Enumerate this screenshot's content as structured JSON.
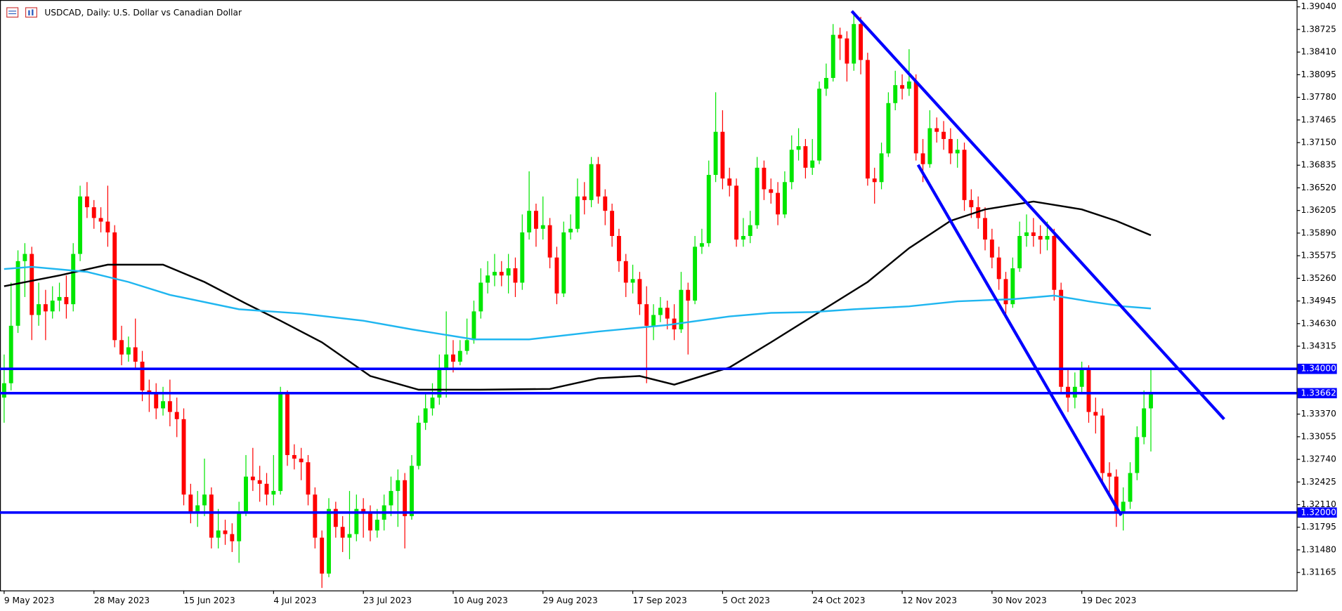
{
  "chart_data": {
    "type": "candlestick",
    "title": "USDCAD, Daily:  U.S. Dollar vs Canadian Dollar",
    "up_color": "#00e600",
    "down_color": "#ff0000",
    "xlim": [
      -0.6,
      187.1
    ],
    "ylim": [
      1.30915,
      1.39135
    ],
    "xticks": [
      {
        "value": 0,
        "label": "9 May 2023"
      },
      {
        "value": 13,
        "label": "28 May 2023"
      },
      {
        "value": 26,
        "label": "15 Jun 2023"
      },
      {
        "value": 39,
        "label": "4 Jul 2023"
      },
      {
        "value": 52,
        "label": "23 Jul 2023"
      },
      {
        "value": 65,
        "label": "10 Aug 2023"
      },
      {
        "value": 78,
        "label": "29 Aug 2023"
      },
      {
        "value": 91,
        "label": "17 Sep 2023"
      },
      {
        "value": 104,
        "label": "5 Oct 2023"
      },
      {
        "value": 117,
        "label": "24 Oct 2023"
      },
      {
        "value": 130,
        "label": "12 Nov 2023"
      },
      {
        "value": 143,
        "label": "30 Nov 2023"
      },
      {
        "value": 156,
        "label": "19 Dec 2023"
      }
    ],
    "yticks": [
      {
        "value": 1.3904,
        "label": "1.39040"
      },
      {
        "value": 1.38725,
        "label": "1.38725"
      },
      {
        "value": 1.3841,
        "label": "1.38410"
      },
      {
        "value": 1.38095,
        "label": "1.38095"
      },
      {
        "value": 1.3778,
        "label": "1.37780"
      },
      {
        "value": 1.37465,
        "label": "1.37465"
      },
      {
        "value": 1.3715,
        "label": "1.37150"
      },
      {
        "value": 1.36835,
        "label": "1.36835"
      },
      {
        "value": 1.3652,
        "label": "1.36520"
      },
      {
        "value": 1.36205,
        "label": "1.36205"
      },
      {
        "value": 1.3589,
        "label": "1.35890"
      },
      {
        "value": 1.35575,
        "label": "1.35575"
      },
      {
        "value": 1.3526,
        "label": "1.35260"
      },
      {
        "value": 1.34945,
        "label": "1.34945"
      },
      {
        "value": 1.3463,
        "label": "1.34630"
      },
      {
        "value": 1.34315,
        "label": "1.34315"
      },
      {
        "value": 1.3337,
        "label": "1.33370"
      },
      {
        "value": 1.33055,
        "label": "1.33055"
      },
      {
        "value": 1.3274,
        "label": "1.32740"
      },
      {
        "value": 1.32425,
        "label": "1.32425"
      },
      {
        "value": 1.3211,
        "label": "1.32110"
      },
      {
        "value": 1.31795,
        "label": "1.31795"
      },
      {
        "value": 1.3148,
        "label": "1.31480"
      },
      {
        "value": 1.31165,
        "label": "1.31165"
      }
    ],
    "candles": [
      [
        1.336,
        1.342,
        1.3325,
        1.338
      ],
      [
        1.338,
        1.352,
        1.337,
        1.346
      ],
      [
        1.346,
        1.3565,
        1.345,
        1.355
      ],
      [
        1.355,
        1.3575,
        1.35,
        1.356
      ],
      [
        1.356,
        1.357,
        1.344,
        1.3475
      ],
      [
        1.3475,
        1.352,
        1.346,
        1.349
      ],
      [
        1.349,
        1.351,
        1.344,
        1.348
      ],
      [
        1.348,
        1.3515,
        1.347,
        1.3495
      ],
      [
        1.3495,
        1.352,
        1.348,
        1.35
      ],
      [
        1.35,
        1.353,
        1.347,
        1.349
      ],
      [
        1.349,
        1.3575,
        1.348,
        1.356
      ],
      [
        1.356,
        1.3655,
        1.355,
        1.364
      ],
      [
        1.364,
        1.366,
        1.361,
        1.3625
      ],
      [
        1.3625,
        1.3635,
        1.3595,
        1.361
      ],
      [
        1.361,
        1.3625,
        1.359,
        1.3605
      ],
      [
        1.3605,
        1.3655,
        1.357,
        1.359
      ],
      [
        1.359,
        1.36,
        1.343,
        1.344
      ],
      [
        1.344,
        1.346,
        1.3405,
        1.342
      ],
      [
        1.342,
        1.3445,
        1.341,
        1.343
      ],
      [
        1.343,
        1.347,
        1.34,
        1.341
      ],
      [
        1.341,
        1.3425,
        1.3355,
        1.337
      ],
      [
        1.337,
        1.3385,
        1.334,
        1.3365
      ],
      [
        1.3365,
        1.338,
        1.333,
        1.3345
      ],
      [
        1.3345,
        1.3375,
        1.3335,
        1.3355
      ],
      [
        1.3355,
        1.3385,
        1.332,
        1.334
      ],
      [
        1.334,
        1.336,
        1.3305,
        1.333
      ],
      [
        1.333,
        1.3345,
        1.321,
        1.3225
      ],
      [
        1.3225,
        1.324,
        1.3185,
        1.32
      ],
      [
        1.32,
        1.323,
        1.318,
        1.321
      ],
      [
        1.321,
        1.3275,
        1.3195,
        1.3225
      ],
      [
        1.3225,
        1.3235,
        1.315,
        1.3165
      ],
      [
        1.3165,
        1.3205,
        1.315,
        1.3175
      ],
      [
        1.3175,
        1.319,
        1.3155,
        1.317
      ],
      [
        1.317,
        1.3185,
        1.3145,
        1.316
      ],
      [
        1.316,
        1.3215,
        1.313,
        1.32
      ],
      [
        1.32,
        1.328,
        1.3195,
        1.325
      ],
      [
        1.325,
        1.329,
        1.323,
        1.3245
      ],
      [
        1.3245,
        1.3265,
        1.3215,
        1.324
      ],
      [
        1.324,
        1.3255,
        1.321,
        1.3225
      ],
      [
        1.3225,
        1.328,
        1.321,
        1.323
      ],
      [
        1.323,
        1.3375,
        1.3225,
        1.3365
      ],
      [
        1.3365,
        1.337,
        1.3265,
        1.328
      ],
      [
        1.328,
        1.3295,
        1.326,
        1.3275
      ],
      [
        1.3275,
        1.329,
        1.3245,
        1.327
      ],
      [
        1.327,
        1.328,
        1.321,
        1.3225
      ],
      [
        1.3225,
        1.3235,
        1.315,
        1.3165
      ],
      [
        1.3165,
        1.3175,
        1.3095,
        1.3115
      ],
      [
        1.3115,
        1.322,
        1.311,
        1.3205
      ],
      [
        1.3205,
        1.3215,
        1.3165,
        1.318
      ],
      [
        1.318,
        1.3195,
        1.3145,
        1.3165
      ],
      [
        1.3165,
        1.323,
        1.3135,
        1.317
      ],
      [
        1.317,
        1.3225,
        1.316,
        1.3205
      ],
      [
        1.3205,
        1.322,
        1.3165,
        1.32
      ],
      [
        1.32,
        1.321,
        1.316,
        1.3175
      ],
      [
        1.3175,
        1.3205,
        1.3165,
        1.319
      ],
      [
        1.319,
        1.3225,
        1.3175,
        1.321
      ],
      [
        1.321,
        1.325,
        1.3195,
        1.323
      ],
      [
        1.323,
        1.326,
        1.318,
        1.3245
      ],
      [
        1.3245,
        1.3255,
        1.315,
        1.3195
      ],
      [
        1.3195,
        1.328,
        1.319,
        1.3265
      ],
      [
        1.3265,
        1.3335,
        1.326,
        1.3325
      ],
      [
        1.3325,
        1.3365,
        1.3315,
        1.3345
      ],
      [
        1.3345,
        1.338,
        1.3335,
        1.336
      ],
      [
        1.336,
        1.342,
        1.335,
        1.34
      ],
      [
        1.34,
        1.348,
        1.336,
        1.342
      ],
      [
        1.342,
        1.344,
        1.3395,
        1.341
      ],
      [
        1.341,
        1.344,
        1.3405,
        1.3425
      ],
      [
        1.3425,
        1.347,
        1.342,
        1.344
      ],
      [
        1.344,
        1.3495,
        1.3435,
        1.348
      ],
      [
        1.348,
        1.354,
        1.347,
        1.352
      ],
      [
        1.352,
        1.355,
        1.3505,
        1.353
      ],
      [
        1.353,
        1.356,
        1.3515,
        1.3535
      ],
      [
        1.3535,
        1.355,
        1.3515,
        1.353
      ],
      [
        1.353,
        1.356,
        1.3505,
        1.354
      ],
      [
        1.354,
        1.3555,
        1.35,
        1.352
      ],
      [
        1.352,
        1.3615,
        1.351,
        1.359
      ],
      [
        1.359,
        1.3675,
        1.358,
        1.362
      ],
      [
        1.362,
        1.363,
        1.357,
        1.3595
      ],
      [
        1.3595,
        1.364,
        1.358,
        1.36
      ],
      [
        1.36,
        1.361,
        1.354,
        1.3555
      ],
      [
        1.3555,
        1.357,
        1.349,
        1.3505
      ],
      [
        1.3505,
        1.3605,
        1.35,
        1.359
      ],
      [
        1.359,
        1.3615,
        1.358,
        1.3595
      ],
      [
        1.3595,
        1.3665,
        1.359,
        1.364
      ],
      [
        1.364,
        1.366,
        1.3615,
        1.3635
      ],
      [
        1.3635,
        1.3695,
        1.3625,
        1.3685
      ],
      [
        1.3685,
        1.3695,
        1.363,
        1.364
      ],
      [
        1.364,
        1.365,
        1.36,
        1.362
      ],
      [
        1.362,
        1.363,
        1.357,
        1.3585
      ],
      [
        1.3585,
        1.3595,
        1.3535,
        1.355
      ],
      [
        1.355,
        1.356,
        1.35,
        1.352
      ],
      [
        1.352,
        1.3545,
        1.3505,
        1.3525
      ],
      [
        1.3525,
        1.3535,
        1.3475,
        1.349
      ],
      [
        1.349,
        1.3515,
        1.338,
        1.346
      ],
      [
        1.346,
        1.349,
        1.344,
        1.3475
      ],
      [
        1.3475,
        1.35,
        1.3465,
        1.3485
      ],
      [
        1.3485,
        1.3495,
        1.3455,
        1.347
      ],
      [
        1.347,
        1.349,
        1.344,
        1.3455
      ],
      [
        1.3455,
        1.3535,
        1.345,
        1.351
      ],
      [
        1.351,
        1.352,
        1.342,
        1.3495
      ],
      [
        1.3495,
        1.3585,
        1.349,
        1.357
      ],
      [
        1.357,
        1.3595,
        1.356,
        1.3575
      ],
      [
        1.3575,
        1.369,
        1.357,
        1.367
      ],
      [
        1.367,
        1.3785,
        1.366,
        1.373
      ],
      [
        1.373,
        1.376,
        1.365,
        1.3665
      ],
      [
        1.3665,
        1.368,
        1.364,
        1.3655
      ],
      [
        1.3655,
        1.3665,
        1.357,
        1.358
      ],
      [
        1.358,
        1.361,
        1.357,
        1.3585
      ],
      [
        1.3585,
        1.362,
        1.3575,
        1.36
      ],
      [
        1.36,
        1.3695,
        1.3595,
        1.368
      ],
      [
        1.368,
        1.369,
        1.3635,
        1.365
      ],
      [
        1.365,
        1.3665,
        1.363,
        1.3645
      ],
      [
        1.3645,
        1.366,
        1.36,
        1.3615
      ],
      [
        1.3615,
        1.3675,
        1.361,
        1.366
      ],
      [
        1.366,
        1.3725,
        1.365,
        1.3705
      ],
      [
        1.3705,
        1.3735,
        1.369,
        1.371
      ],
      [
        1.371,
        1.372,
        1.3665,
        1.368
      ],
      [
        1.368,
        1.372,
        1.367,
        1.369
      ],
      [
        1.369,
        1.38,
        1.3685,
        1.379
      ],
      [
        1.379,
        1.3825,
        1.378,
        1.3805
      ],
      [
        1.3805,
        1.388,
        1.38,
        1.3865
      ],
      [
        1.3865,
        1.3875,
        1.383,
        1.386
      ],
      [
        1.386,
        1.387,
        1.38,
        1.3825
      ],
      [
        1.3825,
        1.3895,
        1.3815,
        1.388
      ],
      [
        1.388,
        1.389,
        1.381,
        1.383
      ],
      [
        1.383,
        1.384,
        1.3655,
        1.3665
      ],
      [
        1.3665,
        1.368,
        1.363,
        1.366
      ],
      [
        1.366,
        1.3715,
        1.365,
        1.37
      ],
      [
        1.37,
        1.3785,
        1.3695,
        1.377
      ],
      [
        1.377,
        1.3815,
        1.376,
        1.3795
      ],
      [
        1.3795,
        1.381,
        1.3775,
        1.379
      ],
      [
        1.379,
        1.3845,
        1.378,
        1.38
      ],
      [
        1.38,
        1.381,
        1.369,
        1.37
      ],
      [
        1.37,
        1.372,
        1.366,
        1.3685
      ],
      [
        1.3685,
        1.376,
        1.368,
        1.3735
      ],
      [
        1.3735,
        1.375,
        1.3715,
        1.373
      ],
      [
        1.373,
        1.3745,
        1.3705,
        1.372
      ],
      [
        1.372,
        1.3735,
        1.3685,
        1.37
      ],
      [
        1.37,
        1.372,
        1.368,
        1.3705
      ],
      [
        1.3705,
        1.3715,
        1.362,
        1.3635
      ],
      [
        1.3635,
        1.365,
        1.361,
        1.3625
      ],
      [
        1.3625,
        1.364,
        1.3595,
        1.361
      ],
      [
        1.361,
        1.3625,
        1.3565,
        1.358
      ],
      [
        1.358,
        1.3595,
        1.354,
        1.3555
      ],
      [
        1.3555,
        1.357,
        1.351,
        1.3525
      ],
      [
        1.3525,
        1.3535,
        1.3475,
        1.349
      ],
      [
        1.349,
        1.3555,
        1.3485,
        1.354
      ],
      [
        1.354,
        1.3605,
        1.3535,
        1.3585
      ],
      [
        1.3585,
        1.3615,
        1.357,
        1.359
      ],
      [
        1.359,
        1.361,
        1.357,
        1.3585
      ],
      [
        1.3585,
        1.36,
        1.356,
        1.358
      ],
      [
        1.358,
        1.3605,
        1.3565,
        1.3585
      ],
      [
        1.3585,
        1.3595,
        1.3495,
        1.351
      ],
      [
        1.351,
        1.352,
        1.3365,
        1.3375
      ],
      [
        1.3375,
        1.34,
        1.334,
        1.336
      ],
      [
        1.336,
        1.3395,
        1.3345,
        1.3375
      ],
      [
        1.3375,
        1.341,
        1.3365,
        1.34
      ],
      [
        1.34,
        1.3405,
        1.3325,
        1.334
      ],
      [
        1.334,
        1.336,
        1.331,
        1.3335
      ],
      [
        1.3335,
        1.3345,
        1.324,
        1.3255
      ],
      [
        1.3255,
        1.327,
        1.3225,
        1.325
      ],
      [
        1.325,
        1.326,
        1.318,
        1.32
      ],
      [
        1.32,
        1.3235,
        1.3175,
        1.3215
      ],
      [
        1.3215,
        1.327,
        1.3205,
        1.3255
      ],
      [
        1.3255,
        1.332,
        1.3245,
        1.3305
      ],
      [
        1.3305,
        1.337,
        1.3295,
        1.3345
      ],
      [
        1.3345,
        1.34,
        1.3285,
        1.33662
      ]
    ],
    "moving_averages": [
      {
        "color": "#000000",
        "x": [
          0,
          8,
          15,
          23,
          29,
          35,
          40,
          46,
          53,
          60,
          69,
          79,
          86,
          92,
          97,
          105,
          111,
          118,
          125,
          131,
          137,
          142,
          149,
          156,
          161,
          166
        ],
        "values": [
          1.3515,
          1.353,
          1.3545,
          1.3545,
          1.3521,
          1.3491,
          1.3467,
          1.3437,
          1.339,
          1.3371,
          1.3371,
          1.3372,
          1.3387,
          1.339,
          1.3378,
          1.3402,
          1.3437,
          1.3479,
          1.3521,
          1.3568,
          1.3606,
          1.3622,
          1.3633,
          1.3622,
          1.3606,
          1.3586
        ]
      },
      {
        "color": "#1fb6f0",
        "x": [
          0,
          4,
          12,
          18,
          24,
          34,
          43,
          52,
          59,
          68,
          76,
          86,
          96,
          105,
          111,
          117,
          123,
          131,
          138,
          146,
          152,
          157,
          162,
          166
        ],
        "values": [
          1.3539,
          1.3542,
          1.3535,
          1.3521,
          1.3503,
          1.3483,
          1.3477,
          1.3467,
          1.3455,
          1.3441,
          1.3441,
          1.3452,
          1.3461,
          1.3473,
          1.3478,
          1.3479,
          1.3483,
          1.3487,
          1.3494,
          1.3497,
          1.3502,
          1.3494,
          1.3487,
          1.3484
        ]
      }
    ],
    "trendlines": [
      {
        "color": "#0000ff",
        "x": [
          122.7,
          176.6
        ],
        "values": [
          1.3898,
          1.333
        ]
      },
      {
        "color": "#0000ff",
        "x": [
          132.3,
          161.7
        ],
        "values": [
          1.3684,
          1.3196
        ]
      }
    ],
    "hlines": [
      {
        "value": 1.34,
        "label": "1.34000",
        "color": "#0000ff"
      },
      {
        "value": 1.33662,
        "label": "1.33662",
        "color": "#0000ff"
      },
      {
        "value": 1.32,
        "label": "1.32000",
        "color": "#0000ff"
      }
    ]
  }
}
